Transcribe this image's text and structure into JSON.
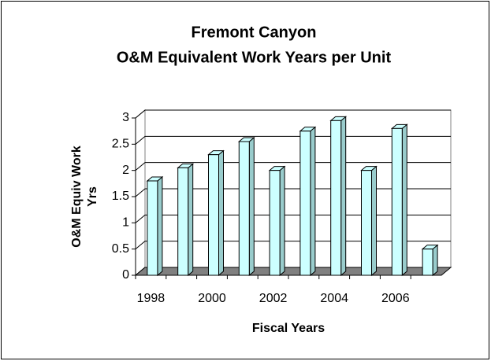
{
  "chart_data": {
    "type": "bar3d",
    "title": [
      "Fremont Canyon",
      "O&M Equivalent Work Years per Unit"
    ],
    "y_label": [
      "O&M Equiv Work",
      "Yrs"
    ],
    "x_label": "Fiscal Years",
    "categories": [
      "1998",
      null,
      "2000",
      null,
      "2002",
      null,
      "2004",
      null,
      "2006",
      null
    ],
    "values": [
      1.8,
      2.05,
      2.3,
      2.55,
      2.0,
      2.75,
      2.95,
      2.0,
      2.8,
      0.5
    ],
    "color": "#ccffff",
    "ylim": [
      0,
      3
    ],
    "yticks": [
      0,
      0.5,
      1,
      1.5,
      2,
      2.5,
      3
    ],
    "grid": true
  }
}
